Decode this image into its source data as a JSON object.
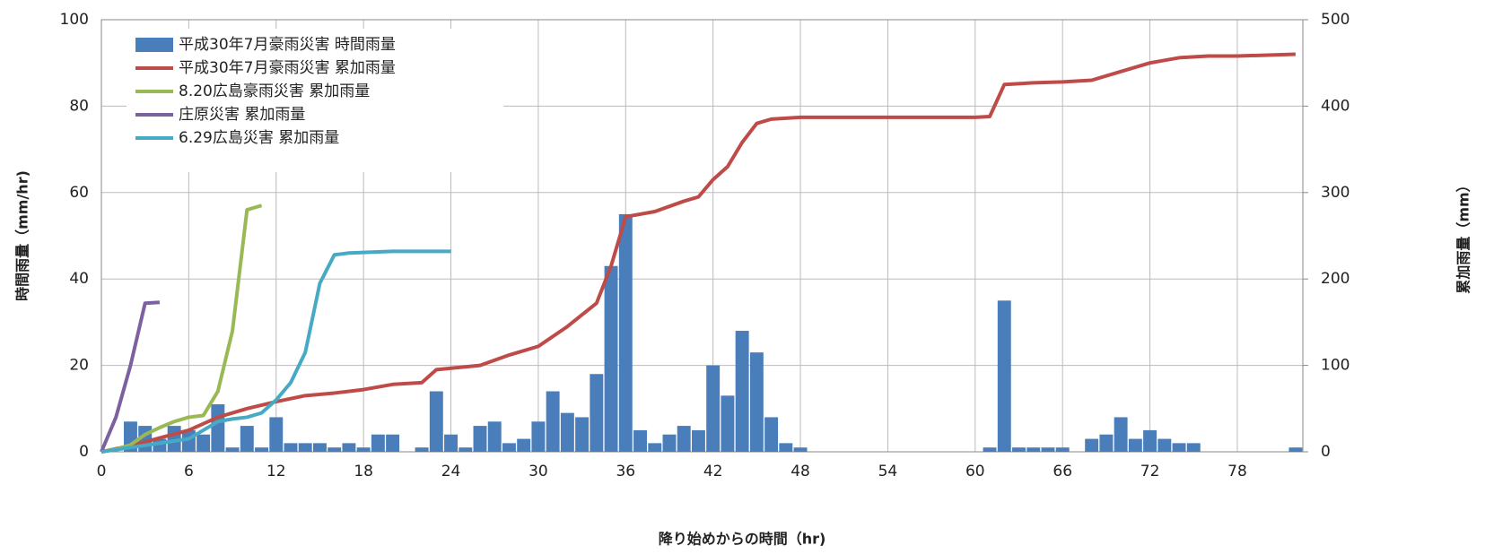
{
  "chart_data": {
    "type": "bar",
    "xlabel": "降り始めからの時間（hr)",
    "ylabel": "時間雨量（mm/hr)",
    "y2label": "累加雨量（mm）",
    "xlim": [
      0,
      82.5
    ],
    "xticks": [
      0,
      6,
      12,
      18,
      24,
      30,
      36,
      42,
      48,
      54,
      60,
      66,
      72,
      78
    ],
    "ylim": [
      0,
      100
    ],
    "yticks": [
      0,
      20,
      40,
      60,
      80,
      100
    ],
    "y2lim": [
      0,
      500
    ],
    "y2ticks": [
      0,
      100,
      200,
      300,
      400,
      500
    ],
    "grid": true,
    "legend": "upper left",
    "series": [
      {
        "name": "平成30年7月豪雨災害  時間雨量",
        "color": "#4a7ebb",
        "type": "bar",
        "x": [
          1,
          2,
          3,
          4,
          5,
          6,
          7,
          8,
          9,
          10,
          11,
          12,
          13,
          14,
          15,
          16,
          17,
          18,
          19,
          20,
          21,
          22,
          23,
          24,
          25,
          26,
          27,
          28,
          29,
          30,
          31,
          32,
          33,
          34,
          35,
          36,
          37,
          38,
          39,
          40,
          41,
          42,
          43,
          44,
          45,
          46,
          47,
          48,
          61,
          62,
          63,
          64,
          65,
          66,
          68,
          69,
          70,
          71,
          72,
          73,
          74,
          75,
          82
        ],
        "values": [
          0,
          7,
          6,
          3,
          6,
          5,
          4,
          11,
          1,
          6,
          1,
          8,
          2,
          2,
          2,
          1,
          2,
          1,
          4,
          4,
          0,
          1,
          14,
          4,
          1,
          6,
          7,
          2,
          3,
          7,
          14,
          9,
          8,
          18,
          43,
          55,
          5,
          2,
          4,
          6,
          5,
          20,
          13,
          28,
          23,
          8,
          2,
          1,
          1,
          35,
          1,
          1,
          1,
          1,
          3,
          4,
          8,
          3,
          5,
          3,
          2,
          2,
          1
        ]
      },
      {
        "name": "平成30年7月豪雨災害  累加雨量",
        "color": "#be4b48",
        "type": "line",
        "axis": "y2",
        "x": [
          0,
          2,
          4,
          6,
          8,
          10,
          12,
          14,
          16,
          18,
          20,
          22,
          23,
          26,
          28,
          30,
          32,
          34,
          35,
          36,
          38,
          40,
          41,
          42,
          43,
          44,
          45,
          46,
          48,
          60,
          61,
          62,
          64,
          66,
          68,
          70,
          72,
          74,
          76,
          78,
          82
        ],
        "values": [
          0,
          7,
          16,
          25,
          40,
          50,
          58,
          65,
          68,
          72,
          78,
          80,
          95,
          100,
          112,
          122,
          145,
          172,
          215,
          272,
          278,
          290,
          295,
          315,
          330,
          358,
          380,
          385,
          387,
          387,
          388,
          425,
          427,
          428,
          430,
          440,
          450,
          456,
          458,
          458,
          460
        ]
      },
      {
        "name": "8.20広島豪雨災害  累加雨量",
        "color": "#98b954",
        "type": "line",
        "axis": "y2",
        "x": [
          0,
          1,
          2,
          3,
          4,
          5,
          6,
          7,
          8,
          9,
          10,
          11
        ],
        "values": [
          0,
          3,
          8,
          20,
          28,
          35,
          40,
          42,
          70,
          140,
          280,
          285
        ]
      },
      {
        "name": "庄原災害  累加雨量",
        "color": "#7d60a0",
        "type": "line",
        "axis": "y2",
        "x": [
          0,
          1,
          2,
          3,
          4
        ],
        "values": [
          0,
          40,
          100,
          172,
          173
        ]
      },
      {
        "name": "6.29広島災害  累加雨量",
        "color": "#46aac5",
        "type": "line",
        "axis": "y2",
        "x": [
          0,
          2,
          4,
          6,
          8,
          9,
          10,
          11,
          12,
          13,
          14,
          15,
          16,
          17,
          20,
          24
        ],
        "values": [
          0,
          5,
          10,
          15,
          35,
          38,
          40,
          45,
          60,
          80,
          115,
          195,
          228,
          230,
          232,
          232
        ]
      }
    ]
  }
}
